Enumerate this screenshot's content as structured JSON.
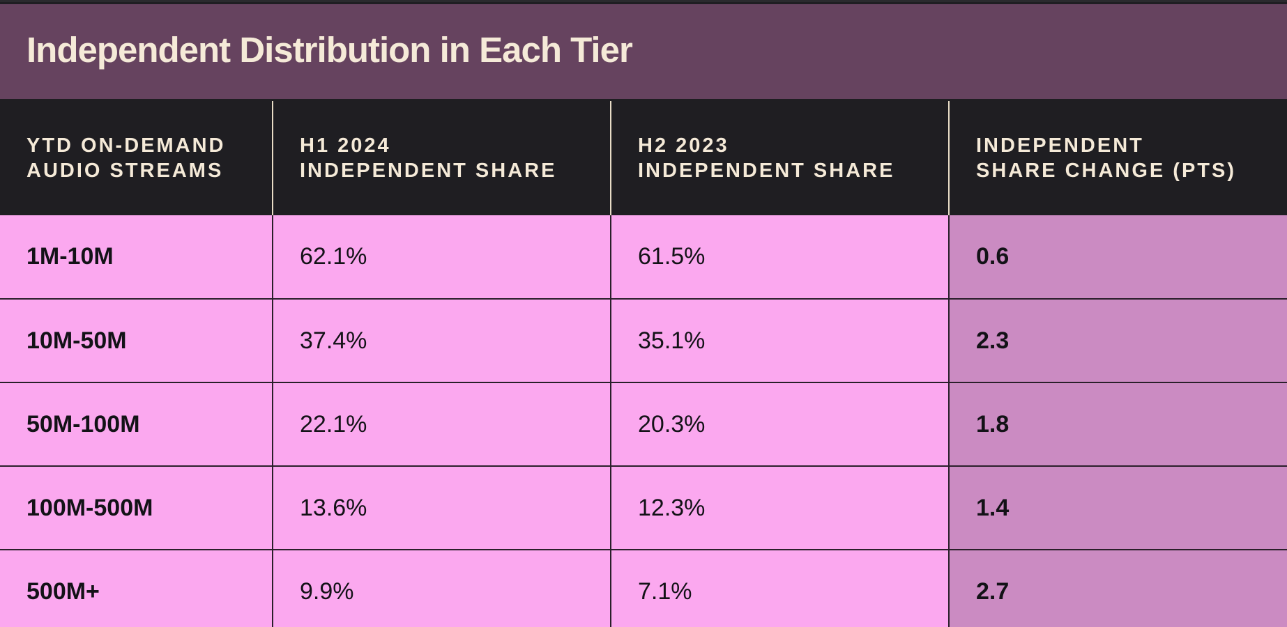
{
  "title": "Independent Distribution in Each Tier",
  "headers": [
    {
      "line1": "YTD ON-DEMAND",
      "line2": "AUDIO STREAMS"
    },
    {
      "line1": "H1 2024",
      "line2": "INDEPENDENT SHARE"
    },
    {
      "line1": "H2 2023",
      "line2": "INDEPENDENT SHARE"
    },
    {
      "line1": "INDEPENDENT",
      "line2": "SHARE CHANGE (PTS)"
    }
  ],
  "rows": [
    {
      "tier": "1M-10M",
      "h1_2024": "62.1%",
      "h2_2023": "61.5%",
      "change": "0.6"
    },
    {
      "tier": "10M-50M",
      "h1_2024": "37.4%",
      "h2_2023": "35.1%",
      "change": "2.3"
    },
    {
      "tier": "50M-100M",
      "h1_2024": "22.1%",
      "h2_2023": "20.3%",
      "change": "1.8"
    },
    {
      "tier": "100M-500M",
      "h1_2024": "13.6%",
      "h2_2023": "12.3%",
      "change": "1.4"
    },
    {
      "tier": "500M+",
      "h1_2024": "9.9%",
      "h2_2023": "7.1%",
      "change": "2.7"
    }
  ],
  "colors": {
    "title_bar": "#66435f",
    "header_bg": "#1f1e22",
    "header_text": "#f5ead8",
    "row_bg": "#fba8ef",
    "change_col_bg": "#cb8bc2"
  },
  "chart_data": {
    "type": "table",
    "title": "Independent Distribution in Each Tier",
    "columns": [
      "YTD ON-DEMAND AUDIO STREAMS",
      "H1 2024 INDEPENDENT SHARE",
      "H2 2023 INDEPENDENT SHARE",
      "INDEPENDENT SHARE CHANGE (PTS)"
    ],
    "categories": [
      "1M-10M",
      "10M-50M",
      "50M-100M",
      "100M-500M",
      "500M+"
    ],
    "series": [
      {
        "name": "H1 2024 INDEPENDENT SHARE",
        "values": [
          62.1,
          37.4,
          22.1,
          13.6,
          9.9
        ]
      },
      {
        "name": "H2 2023 INDEPENDENT SHARE",
        "values": [
          61.5,
          35.1,
          20.3,
          12.3,
          7.1
        ]
      },
      {
        "name": "INDEPENDENT SHARE CHANGE (PTS)",
        "values": [
          0.6,
          2.3,
          1.8,
          1.4,
          2.7
        ]
      }
    ]
  }
}
